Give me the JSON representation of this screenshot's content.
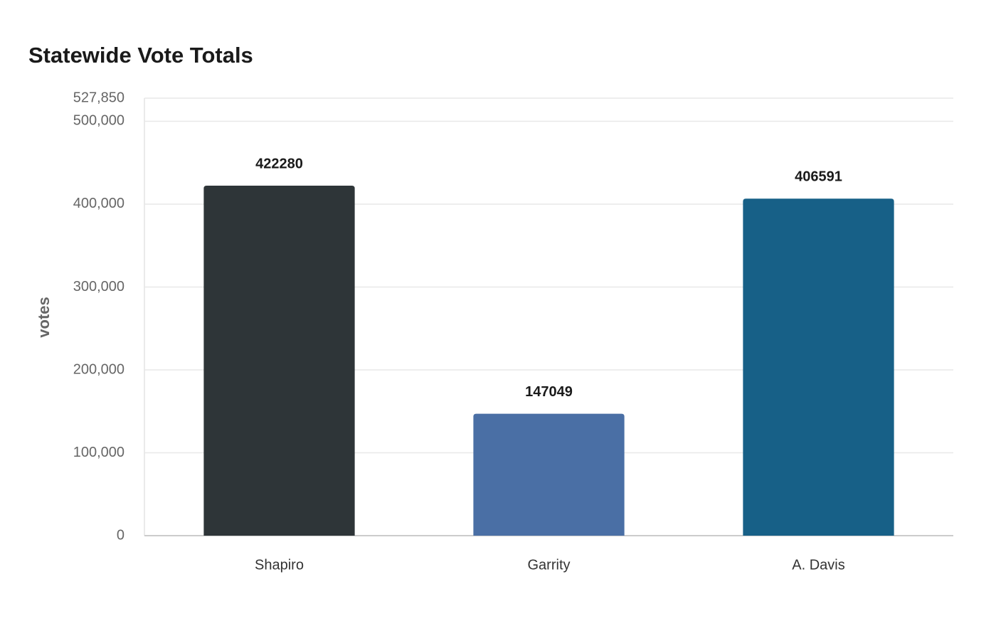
{
  "chart_data": {
    "type": "bar",
    "title": "Statewide Vote Totals",
    "y_label": "votes",
    "categories": [
      "Shapiro",
      "Garrity",
      "A. Davis"
    ],
    "values": [
      422280,
      147049,
      406591
    ],
    "colors": [
      "#2e3538",
      "#4a6fa5",
      "#176087"
    ],
    "ylim": [
      0,
      527850
    ],
    "yticks": [
      0,
      {
        "value": 100000,
        "label": "100,000"
      },
      {
        "value": 200000,
        "label": "200,000"
      },
      {
        "value": 300000,
        "label": "300,000"
      },
      {
        "value": 400000,
        "label": "400,000"
      },
      {
        "value": 500000,
        "label": "500,000"
      },
      {
        "value": 527850,
        "label": "527,850"
      }
    ],
    "grid": true
  }
}
